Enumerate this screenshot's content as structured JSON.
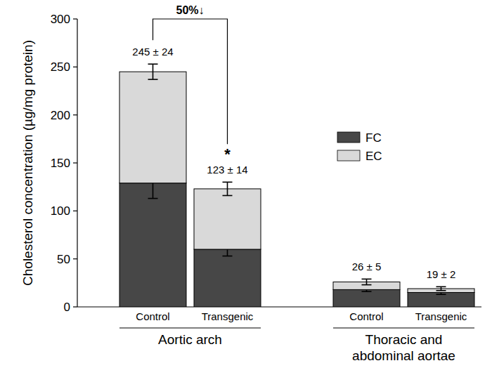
{
  "chart_data": {
    "type": "bar",
    "stacked": true,
    "y_label": "Cholesterol concentration (µg/mg protein)",
    "categories": [
      "Control",
      "Transgenic",
      "Control",
      "Transgenic"
    ],
    "groups": [
      "Aortic arch",
      "Thoracic and\nabdominal aortae"
    ],
    "series": [
      {
        "name": "FC",
        "color": "#474747",
        "values": [
          129,
          60,
          18,
          15
        ],
        "errors": [
          16,
          7,
          2,
          2
        ]
      },
      {
        "name": "EC",
        "color": "#d9d9d9",
        "values": [
          116,
          63,
          8,
          4
        ],
        "errors": [
          8,
          7,
          3,
          2
        ]
      }
    ],
    "total_labels": [
      "245 ± 24",
      "123 ± 14",
      "26 ± 5",
      "19 ± 2"
    ],
    "comparison": {
      "label": "50%↓",
      "significance": "*"
    },
    "ylim": [
      0,
      300
    ],
    "yticks": [
      0,
      50,
      100,
      150,
      200,
      250,
      300
    ],
    "grid": false,
    "legend": "right"
  }
}
